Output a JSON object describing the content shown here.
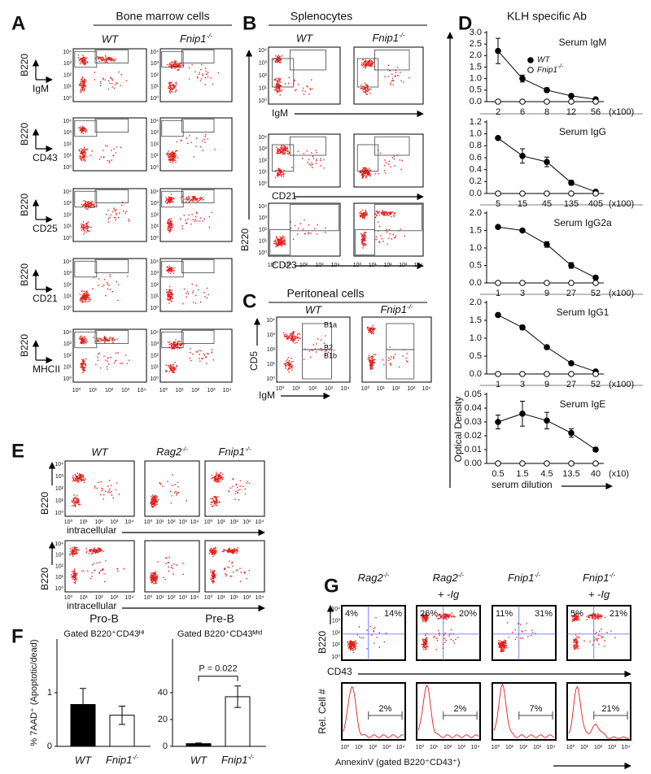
{
  "panels": {
    "flow_ticks": [
      "10⁰",
      "10¹",
      "10²",
      "10³",
      "10⁴"
    ],
    "A": {
      "label": "A",
      "title": "Bone marrow cells",
      "columns": [
        "WT",
        "Fnip1-/-"
      ],
      "rows": [
        {
          "y": "B220",
          "x": "IgM"
        },
        {
          "y": "B220",
          "x": "CD43"
        },
        {
          "y": "B220",
          "x": "CD25"
        },
        {
          "y": "B220",
          "x": "CD21"
        },
        {
          "y": "B220",
          "x": "MHCII"
        }
      ]
    },
    "B": {
      "label": "B",
      "title": "Splenocytes",
      "columns": [
        "WT",
        "Fnip1-/-"
      ],
      "y_label": "B220",
      "x_labels": [
        "IgM",
        "CD21",
        "CD23"
      ]
    },
    "C": {
      "label": "C",
      "title": "Peritoneal cells",
      "columns": [
        "WT",
        "Fnip1-/-"
      ],
      "y_label": "CD5",
      "x_label": "IgM",
      "gates": [
        "B1a",
        "B2,",
        "B1b"
      ]
    },
    "D": {
      "label": "D",
      "title": "KLH specific Ab",
      "y_label": "Optical Density",
      "x_label": "serum dilution"
    },
    "E": {
      "label": "E",
      "columns": [
        "WT",
        "Rag2-/-",
        "Fnip1-/-"
      ],
      "y_label": "B220",
      "x_label": "intracellular"
    },
    "F": {
      "label": "F",
      "y_label": "% 7AAD⁺ (Apoptotic/dead)"
    },
    "G": {
      "label": "G",
      "columns": [
        [
          "Rag2-/-"
        ],
        [
          "Rag2-/-",
          "+ -Ig"
        ],
        [
          "Fnip1-/-"
        ],
        [
          "Fnip1-/-",
          "+ -Ig"
        ]
      ],
      "quadrants": [
        [
          "4%",
          "14%"
        ],
        [
          "26%",
          "20%"
        ],
        [
          "11%",
          "31%"
        ],
        [
          "5%",
          "21%"
        ]
      ],
      "histogram_labels": [
        "2%",
        "2%",
        "7%",
        "21%"
      ],
      "y_labels": [
        "B220",
        "Rel. Cell #"
      ],
      "x_labels": [
        "CD43",
        "AnnexinV (gated B220⁺CD43⁺)"
      ]
    }
  },
  "chart_data": [
    {
      "type": "line",
      "title": "Serum IgM",
      "categories": [
        "2",
        "6",
        "8",
        "12",
        "56"
      ],
      "x_unit": "(x100)",
      "ylim": [
        0,
        3
      ],
      "yticks": [
        {
          "value": 0,
          "label": "0.0"
        },
        {
          "value": 0.5,
          "label": "0.5"
        },
        {
          "value": 1,
          "label": "1.0"
        },
        {
          "value": 1.5,
          "label": "1.5"
        },
        {
          "value": 2,
          "label": "2.0"
        },
        {
          "value": 2.5,
          "label": "2.5"
        },
        {
          "value": 3,
          "label": "3.0"
        }
      ],
      "legend": "upper right",
      "series": [
        {
          "name": "WT",
          "color": "#000000",
          "values": [
            2.2,
            1.0,
            0.5,
            0.25,
            0.1
          ],
          "errors": [
            0.55,
            0.15,
            0.1,
            0.05,
            0.03
          ]
        },
        {
          "name": "Fnip1-/-",
          "color": "#ffffff",
          "values": [
            0,
            0,
            0,
            0,
            0
          ]
        }
      ]
    },
    {
      "type": "line",
      "title": "Serum IgG",
      "categories": [
        "5",
        "15",
        "45",
        "135",
        "405"
      ],
      "x_unit": "(x100)",
      "ylim": [
        0,
        1.2
      ],
      "yticks": [
        {
          "value": 0,
          "label": "0.0"
        },
        0.2,
        0.4,
        0.6,
        0.8,
        {
          "value": 1,
          "label": "1.0"
        },
        1.2
      ],
      "series": [
        {
          "color": "#000000",
          "values": [
            0.93,
            0.63,
            0.53,
            0.18,
            0.03
          ],
          "errors": [
            0,
            0.12,
            0.08,
            0.04,
            0.01
          ]
        },
        {
          "color": "#ffffff",
          "values": [
            0,
            0,
            0,
            0,
            0
          ]
        }
      ]
    },
    {
      "type": "line",
      "title": "Serum IgG2a",
      "categories": [
        "1",
        "3",
        "9",
        "27",
        "52"
      ],
      "x_unit": "(x100)",
      "ylim": [
        0,
        2
      ],
      "yticks": [
        {
          "value": 0,
          "label": "0.0"
        },
        0.5,
        {
          "value": 1,
          "label": "1.0"
        },
        1.5,
        {
          "value": 2,
          "label": "2.0"
        }
      ],
      "series": [
        {
          "color": "#000000",
          "values": [
            1.6,
            1.5,
            1.1,
            0.5,
            0.15
          ],
          "errors": [
            0.02,
            0.03,
            0.08,
            0.08,
            0.05
          ]
        },
        {
          "color": "#ffffff",
          "values": [
            0,
            0,
            0,
            0,
            0
          ]
        }
      ]
    },
    {
      "type": "line",
      "title": "Serum IgG1",
      "categories": [
        "1",
        "3",
        "9",
        "27",
        "52"
      ],
      "x_unit": "(x100)",
      "ylim": [
        0,
        2
      ],
      "yticks": [
        {
          "value": 0,
          "label": "0.0"
        },
        0.5,
        {
          "value": 1,
          "label": "1.0"
        },
        1.5,
        {
          "value": 2,
          "label": "2.0"
        }
      ],
      "series": [
        {
          "color": "#000000",
          "values": [
            1.65,
            1.3,
            0.75,
            0.3,
            0.07
          ],
          "errors": [
            0.05,
            0.06,
            0.05,
            0.05,
            0.02
          ]
        },
        {
          "color": "#ffffff",
          "values": [
            0,
            0,
            0,
            0,
            0
          ]
        }
      ]
    },
    {
      "type": "line",
      "title": "Serum IgE",
      "categories": [
        "0.5",
        "1.5",
        "4.5",
        "13.5",
        "40"
      ],
      "x_unit": "(x10)",
      "ylim": [
        0,
        0.05
      ],
      "yticks": [
        {
          "value": 0,
          "label": "0.00"
        },
        {
          "value": 0.01,
          "label": "0.01"
        },
        {
          "value": 0.02,
          "label": "0.02"
        },
        {
          "value": 0.03,
          "label": "0.03"
        },
        {
          "value": 0.04,
          "label": "0.04"
        },
        {
          "value": 0.05,
          "label": "0.05"
        }
      ],
      "series": [
        {
          "color": "#000000",
          "values": [
            0.03,
            0.036,
            0.031,
            0.022,
            0.01
          ],
          "errors": [
            0.005,
            0.009,
            0.006,
            0.003,
            0.0015
          ]
        },
        {
          "color": "#ffffff",
          "values": [
            0,
            0,
            0,
            0,
            0
          ]
        }
      ]
    },
    {
      "type": "bar",
      "title": "Pro-B",
      "subtitle": "Gated B220⁺CD43ᴴⁱ",
      "categories": [
        "WT",
        "Fnip1-/-"
      ],
      "values": [
        0.78,
        0.58
      ],
      "errors": [
        0.3,
        0.17
      ],
      "colors": [
        "#000000",
        "#ffffff"
      ],
      "ylim": [
        0,
        2
      ],
      "yticks": [
        0,
        1
      ]
    },
    {
      "type": "bar",
      "title": "Pre-B",
      "subtitle": "Gated B220⁺CD43ᴹⁱᵈ",
      "categories": [
        "WT",
        "Fnip1-/-"
      ],
      "values": [
        2,
        37
      ],
      "errors": [
        0.5,
        8
      ],
      "colors": [
        "#000000",
        "#ffffff"
      ],
      "ylim": [
        0,
        80
      ],
      "yticks": [
        0,
        20,
        40
      ],
      "annotation": "P = 0.022"
    }
  ]
}
